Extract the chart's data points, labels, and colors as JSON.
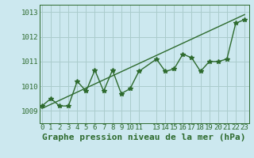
{
  "x": [
    0,
    1,
    2,
    3,
    4,
    5,
    6,
    7,
    8,
    9,
    10,
    11,
    13,
    14,
    15,
    16,
    17,
    18,
    19,
    20,
    21,
    22,
    23
  ],
  "y": [
    1009.2,
    1009.5,
    1009.2,
    1009.2,
    1010.2,
    1009.8,
    1010.65,
    1009.8,
    1010.65,
    1009.7,
    1009.9,
    1010.6,
    1011.1,
    1010.6,
    1010.7,
    1011.3,
    1011.15,
    1010.6,
    1011.0,
    1011.0,
    1011.1,
    1012.55,
    1012.7
  ],
  "trend_x": [
    0,
    23
  ],
  "trend_y": [
    1009.1,
    1012.9
  ],
  "line_color": "#2d6a2d",
  "bg_color": "#cce8ef",
  "grid_color": "#aacccc",
  "xlabel": "Graphe pression niveau de la mer (hPa)",
  "xticks": [
    0,
    1,
    2,
    3,
    4,
    5,
    6,
    7,
    8,
    9,
    10,
    11,
    13,
    14,
    15,
    16,
    17,
    18,
    19,
    20,
    21,
    22,
    23
  ],
  "yticks": [
    1009,
    1010,
    1011,
    1012
  ],
  "ylim": [
    1008.5,
    1013.3
  ],
  "xlim": [
    -0.3,
    23.5
  ],
  "marker": "*",
  "markersize": 4,
  "linewidth": 1.0,
  "xlabel_fontsize": 8,
  "tick_fontsize": 6.5,
  "xlabel_fontweight": "bold"
}
